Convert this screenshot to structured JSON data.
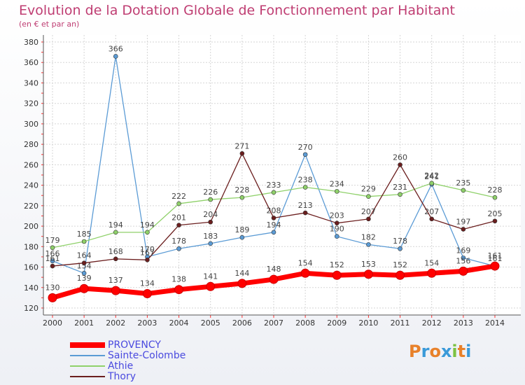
{
  "header": {
    "title": "Evolution de la Dotation Globale de Fonctionnement par Habitant",
    "subtitle": "(en € et par an)"
  },
  "logo": {
    "text": "Proxiti",
    "colors": [
      "#e8812a",
      "#3a9ad9",
      "#e8812a",
      "#3a9ad9",
      "#7cc242",
      "#e8812a",
      "#3a9ad9"
    ]
  },
  "chart_data": {
    "type": "line",
    "x": [
      "2000",
      "2001",
      "2002",
      "2003",
      "2004",
      "2005",
      "2006",
      "2007",
      "2008",
      "2009",
      "2010",
      "2011",
      "2012",
      "2013",
      "2014"
    ],
    "ylim": [
      120,
      380
    ],
    "yticks": [
      120,
      140,
      160,
      180,
      200,
      220,
      240,
      260,
      280,
      300,
      320,
      340,
      360,
      380
    ],
    "grid": true,
    "legend_position": "bottom-left",
    "series": [
      {
        "name": "PROVENCY",
        "color": "#ff0000",
        "values": [
          130,
          139,
          137,
          134,
          138,
          141,
          144,
          148,
          154,
          152,
          153,
          152,
          154,
          156,
          161
        ]
      },
      {
        "name": "Sainte-Colombe",
        "color": "#5b9bd5",
        "values": [
          166,
          154,
          366,
          170,
          178,
          183,
          189,
          194,
          270,
          190,
          182,
          178,
          241,
          169,
          161
        ]
      },
      {
        "name": "Athie",
        "color": "#8fd16a",
        "values": [
          179,
          185,
          194,
          194,
          222,
          226,
          228,
          233,
          238,
          234,
          229,
          231,
          242,
          235,
          228
        ]
      },
      {
        "name": "Thory",
        "color": "#6b1e1e",
        "values": [
          161,
          164,
          168,
          167,
          201,
          204,
          271,
          208,
          213,
          203,
          207,
          260,
          207,
          197,
          205
        ]
      }
    ]
  }
}
